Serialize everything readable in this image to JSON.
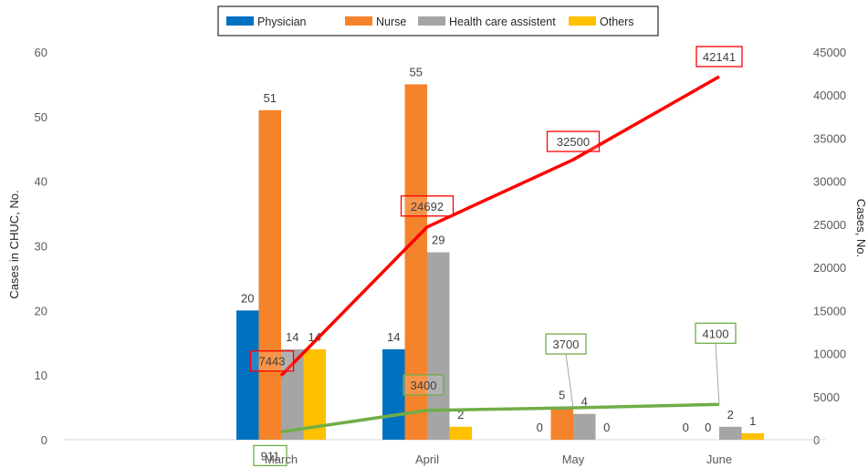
{
  "chart_data": {
    "type": "bar",
    "categories": [
      "March",
      "April",
      "May",
      "June"
    ],
    "series": [
      {
        "name": "Physician",
        "color": "#0070C0",
        "values": [
          20,
          14,
          0,
          0
        ]
      },
      {
        "name": "Nurse",
        "color": "#F4832B",
        "values": [
          51,
          55,
          5,
          0
        ]
      },
      {
        "name": "Health care assistent",
        "color": "#A5A5A5",
        "values": [
          14,
          29,
          4,
          2
        ]
      },
      {
        "name": "Others",
        "color": "#FFC000",
        "values": [
          14,
          2,
          0,
          1
        ]
      }
    ],
    "bar_labels": [
      [
        "20",
        "14",
        "0",
        "0"
      ],
      [
        "51",
        "55",
        "5",
        "0"
      ],
      [
        "14",
        "29",
        "4",
        "2"
      ],
      [
        "14",
        "2",
        "0",
        "1"
      ]
    ],
    "lines": [
      {
        "color": "#FF0000",
        "axis": "right",
        "values": [
          7443,
          24692,
          32500,
          42141
        ],
        "labels": [
          "7443",
          "24692",
          "32500",
          "42141"
        ]
      },
      {
        "color": "#70AD47",
        "axis": "right",
        "values": [
          911,
          3400,
          3700,
          4100
        ],
        "labels": [
          "911",
          "3400",
          "3700",
          "4100"
        ]
      }
    ],
    "ylabel": "Cases in CHUC, No.",
    "y2label": "Cases, No.",
    "ylim": [
      0,
      60
    ],
    "y2lim": [
      0,
      45000
    ],
    "yticks": [
      "0",
      "10",
      "20",
      "30",
      "40",
      "50",
      "60"
    ],
    "y2ticks": [
      "0",
      "5000",
      "10000",
      "15000",
      "20000",
      "25000",
      "30000",
      "35000",
      "40000",
      "45000"
    ],
    "grid": false,
    "legend_position": "top-center"
  }
}
